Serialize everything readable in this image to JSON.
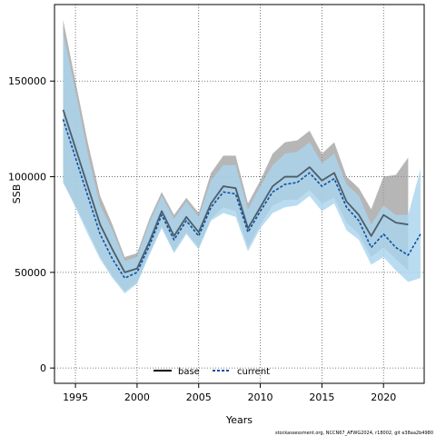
{
  "chart_data": {
    "type": "line",
    "xlabel": "Years",
    "ylabel": "SSB",
    "xlim": [
      1993.3,
      2023.3
    ],
    "ylim": [
      -8000,
      190000
    ],
    "x_ticks": [
      1995,
      2000,
      2005,
      2010,
      2015,
      2020
    ],
    "y_ticks": [
      0,
      50000,
      100000,
      150000
    ],
    "grid": true,
    "legend_position": "bottom-center",
    "series": [
      {
        "name": "base",
        "color": "#000000",
        "band_color": "#9a9a9a",
        "x": [
          1994,
          1995,
          1996,
          1997,
          1998,
          1999,
          2000,
          2001,
          2002,
          2003,
          2004,
          2005,
          2006,
          2007,
          2008,
          2009,
          2010,
          2011,
          2012,
          2013,
          2014,
          2015,
          2016,
          2017,
          2018,
          2019,
          2020,
          2021,
          2022
        ],
        "values": [
          135000,
          115000,
          95000,
          75000,
          62000,
          50000,
          52000,
          66000,
          82000,
          69000,
          79000,
          71000,
          86000,
          95000,
          94000,
          73000,
          84000,
          95000,
          100000,
          100000,
          105000,
          98000,
          102000,
          87000,
          80000,
          69000,
          80000,
          76000,
          75000
        ],
        "lower": [
          97000,
          85000,
          72000,
          58000,
          48000,
          40000,
          45000,
          60000,
          74000,
          61000,
          71000,
          63000,
          78000,
          84000,
          82000,
          63000,
          75000,
          85000,
          88000,
          88000,
          93000,
          86000,
          89000,
          76000,
          70000,
          58000,
          63000,
          57000,
          51000
        ],
        "upper": [
          182000,
          150000,
          118000,
          90000,
          75000,
          58000,
          60000,
          78000,
          92000,
          80000,
          89000,
          81000,
          102000,
          111000,
          111000,
          86000,
          98000,
          112000,
          118000,
          119000,
          124000,
          112000,
          118000,
          100000,
          94000,
          83000,
          100000,
          101000,
          110000
        ]
      },
      {
        "name": "current",
        "color": "#0d4fa0",
        "band_color": "#a9d4ee",
        "x": [
          1994,
          1995,
          1996,
          1997,
          1998,
          1999,
          2000,
          2001,
          2002,
          2003,
          2004,
          2005,
          2006,
          2007,
          2008,
          2009,
          2010,
          2011,
          2012,
          2013,
          2014,
          2015,
          2016,
          2017,
          2018,
          2019,
          2020,
          2021,
          2022,
          2023
        ],
        "values": [
          130000,
          110000,
          90000,
          70000,
          57000,
          47000,
          50000,
          64000,
          80000,
          67000,
          77000,
          69000,
          84000,
          92000,
          91000,
          71000,
          82000,
          92000,
          96000,
          97000,
          102000,
          95000,
          99000,
          84000,
          77000,
          63000,
          70000,
          63000,
          59000,
          70000
        ],
        "lower": [
          97000,
          84000,
          70000,
          57000,
          47000,
          39000,
          44000,
          59000,
          73000,
          60000,
          70000,
          62000,
          77000,
          81000,
          79000,
          61000,
          73000,
          81000,
          84000,
          85000,
          90000,
          82000,
          86000,
          72000,
          67000,
          54000,
          58000,
          51000,
          45000,
          47000
        ],
        "upper": [
          175000,
          145000,
          112000,
          85000,
          72000,
          56000,
          58000,
          76000,
          90000,
          78000,
          87000,
          79000,
          98000,
          106000,
          106000,
          83000,
          95000,
          106000,
          112000,
          113000,
          118000,
          107000,
          112000,
          96000,
          90000,
          75000,
          85000,
          80000,
          80000,
          104000
        ]
      }
    ]
  },
  "footer": "stockassessment.org, NCCN67_AFWG2024, r18002, git e38aa2b4980"
}
